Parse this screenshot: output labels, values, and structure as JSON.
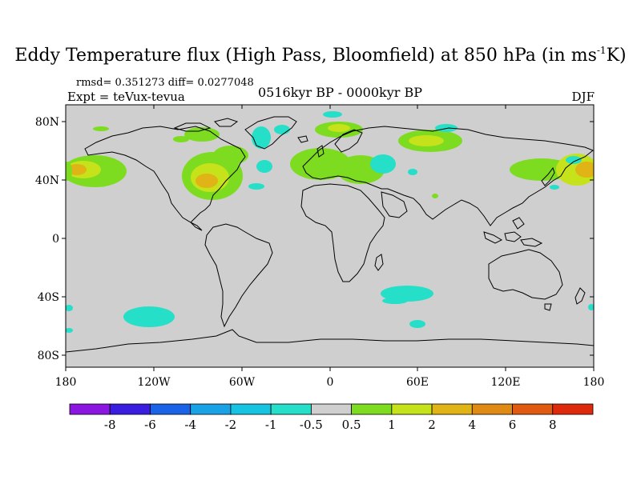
{
  "title_main": "Eddy Temperature flux (High Pass, Bloomfield) at 850 hPa (in ms",
  "title_sup": "-1",
  "title_end": "K)",
  "stats": "rmsd= 0.351273 diff= 0.0277048",
  "expt": "Expt = teVux-tevua",
  "period": "0516kyr BP - 0000kyr BP",
  "season": "DJF",
  "lat_labels": [
    "80N",
    "40N",
    "0",
    "40S",
    "80S"
  ],
  "lon_labels": [
    "180",
    "120W",
    "60W",
    "0",
    "60E",
    "120E",
    "180"
  ],
  "colorbar": {
    "colors": [
      "#8a16e0",
      "#3a1ee0",
      "#1a62e6",
      "#1aa2e6",
      "#16c4e2",
      "#25dfc8",
      "#cfcfcf",
      "#7ddc1f",
      "#c6e21a",
      "#e0b416",
      "#e08a16",
      "#e05a12",
      "#de2a0c"
    ],
    "labels": [
      "-8",
      "-6",
      "-4",
      "-2",
      "-1",
      "-0.5",
      "0.5",
      "1",
      "2",
      "4",
      "6",
      "8"
    ]
  },
  "colors": {
    "land_fill": "#cfcfcf",
    "coast": "#000000"
  }
}
